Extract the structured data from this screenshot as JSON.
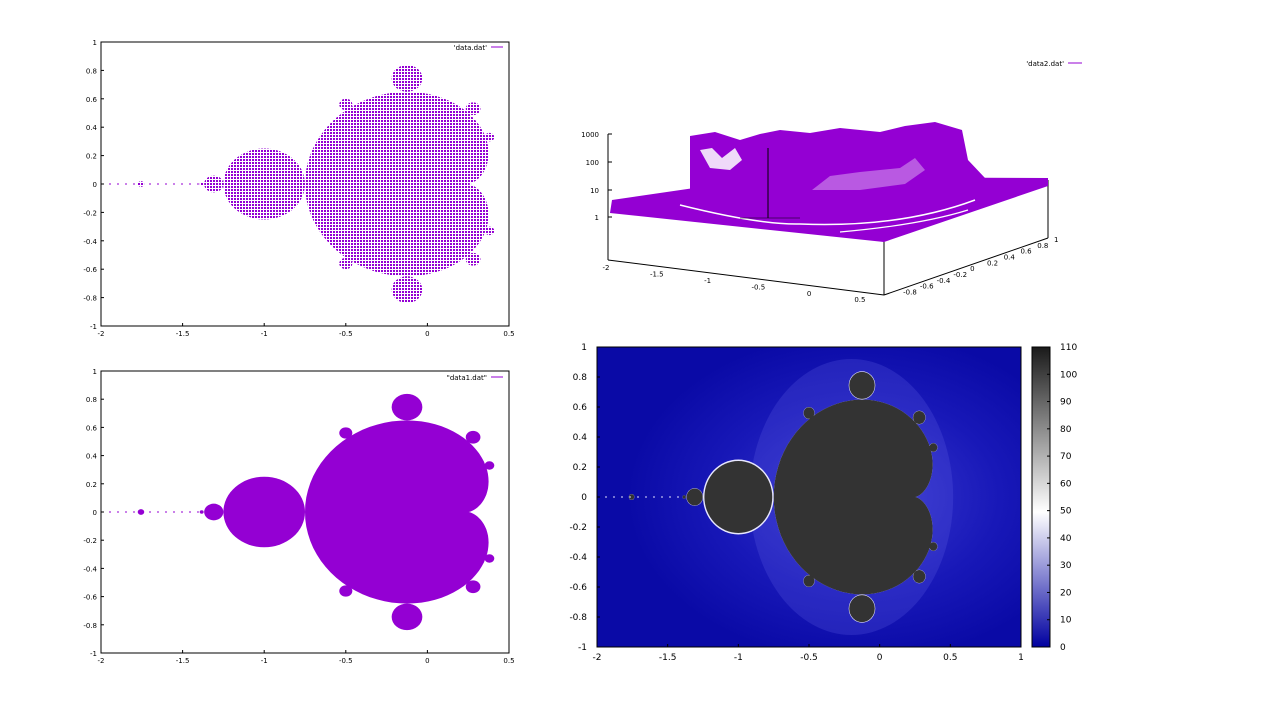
{
  "colors": {
    "purple": "#9400d3",
    "heat_low": "#0000a0",
    "heat_mid": "#ffffff",
    "heat_high": "#1a1a1a",
    "set_fill": "#333333"
  },
  "chart_data": [
    {
      "type": "scatter",
      "legend": "'data.dat'",
      "legend_position": "top-right",
      "style": "points",
      "xlim": [
        -2,
        0.5
      ],
      "ylim": [
        -1,
        1
      ],
      "x_ticks": [
        "-2",
        "-1.5",
        "-1",
        "-0.5",
        "0",
        "0.5"
      ],
      "y_ticks": [
        "1",
        "0.8",
        "0.6",
        "0.4",
        "0.2",
        "0",
        "-0.2",
        "-0.4",
        "-0.6",
        "-0.8",
        "-1"
      ],
      "grid": false
    },
    {
      "type": "scatter",
      "dimension": "3d",
      "legend": "'data2.dat'",
      "legend_position": "top-right",
      "zscale": "log",
      "x_ticks": [
        "-2",
        "-1.5",
        "-1",
        "-0.5",
        "0",
        "0.5"
      ],
      "y_ticks": [
        "-0.8",
        "-0.6",
        "-0.4",
        "-0.2",
        "0",
        "0.2",
        "0.4",
        "0.6",
        "0.8",
        "1"
      ],
      "z_ticks": [
        "1000",
        "100",
        "10",
        "1"
      ],
      "grid": false
    },
    {
      "type": "scatter",
      "legend": "\"data1.dat\"",
      "legend_position": "top-right",
      "style": "filled",
      "xlim": [
        -2,
        0.5
      ],
      "ylim": [
        -1,
        1
      ],
      "x_ticks": [
        "-2",
        "-1.5",
        "-1",
        "-0.5",
        "0",
        "0.5"
      ],
      "y_ticks": [
        "1",
        "0.8",
        "0.6",
        "0.4",
        "0.2",
        "0",
        "-0.2",
        "-0.4",
        "-0.6",
        "-0.8",
        "-1"
      ],
      "grid": false
    },
    {
      "type": "heatmap",
      "xlim": [
        -2,
        1
      ],
      "ylim": [
        -1,
        1
      ],
      "x_ticks": [
        "-2",
        "-1.5",
        "-1",
        "-0.5",
        "0",
        "0.5",
        "1"
      ],
      "y_ticks": [
        "1",
        "0.8",
        "0.6",
        "0.4",
        "0.2",
        "0",
        "-0.2",
        "-0.4",
        "-0.6",
        "-0.8",
        "-1"
      ],
      "colorbar_range": [
        0,
        110
      ],
      "colorbar_ticks": [
        "110",
        "100",
        "90",
        "80",
        "70",
        "60",
        "50",
        "40",
        "30",
        "20",
        "10",
        "0"
      ],
      "grid": false
    }
  ]
}
